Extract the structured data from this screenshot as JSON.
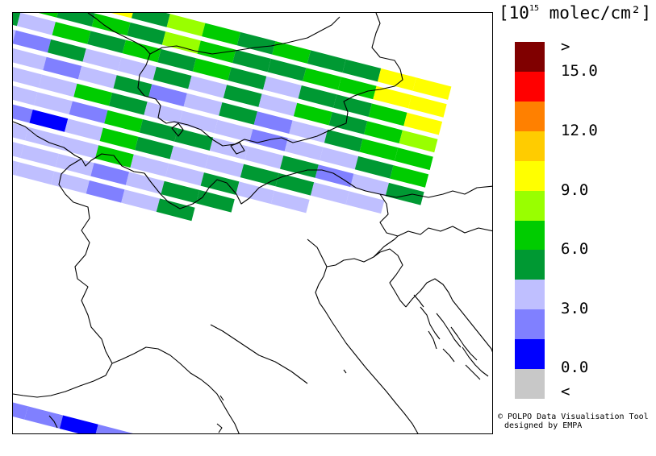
{
  "legend": {
    "unit_open": "[",
    "unit_base": "10",
    "unit_exp": "15",
    "unit_rest": " molec/cm²",
    "unit_close": "]",
    "colors": [
      "#c8c8c8",
      "#0000ff",
      "#8080ff",
      "#bfbfff",
      "#009933",
      "#00cc00",
      "#99ff00",
      "#ffff00",
      "#ffcc00",
      "#ff8000",
      "#ff0000",
      "#800000"
    ],
    "labels": [
      "<",
      "0.0",
      "3.0",
      "6.0",
      "9.0",
      "12.0",
      "15.0",
      ">"
    ]
  },
  "credit": {
    "line1": "© POLPO Data Visualisation Tool",
    "line2": "designed by EMPA"
  },
  "map": {
    "swath_cell_colors": [
      [
        "#009933",
        "#00cc00",
        "#009933",
        "#ffff00",
        "#009933",
        "#99ff00",
        "#00cc00",
        "#009933",
        "#00cc00",
        "#009933",
        "#009933",
        "#ffff00",
        "#ffff00"
      ],
      [
        "#009933",
        "#00cc00",
        "#009933",
        "#00cc00",
        "#009933",
        "#99ff00",
        "#00cc00",
        "#009933",
        "#009933",
        "#00cc00",
        "#00cc00",
        "#ffff00",
        "#ffff00"
      ],
      [
        "#009933",
        "#bfbfff",
        "#00cc00",
        "#009933",
        "#00cc00",
        "#009933",
        "#00cc00",
        "#009933",
        "#bfbfff",
        "#009933",
        "#009933",
        "#00cc00",
        "#ffff00"
      ],
      [
        "#bfbfff",
        "#8080ff",
        "#009933",
        "#bfbfff",
        "#bfbfff",
        "#009933",
        "#bfbfff",
        "#009933",
        "#bfbfff",
        "#00cc00",
        "#009933",
        "#00cc00",
        "#99ff00"
      ],
      [
        "#009933",
        "#bfbfff",
        "#8080ff",
        "#bfbfff",
        "#009933",
        "#8080ff",
        "#bfbfff",
        "#009933",
        "#8080ff",
        "#bfbfff",
        "#009933",
        "#00cc00",
        "#00cc00"
      ],
      [
        "#8080ff",
        "#bfbfff",
        "#bfbfff",
        "#00cc00",
        "#009933",
        "#bfbfff",
        "#bfbfff",
        "#bfbfff",
        "#8080ff",
        "#bfbfff",
        "#bfbfff",
        "#009933",
        "#00cc00"
      ],
      [
        "#8080ff",
        "#bfbfff",
        "#bfbfff",
        "#8080ff",
        "#00cc00",
        "#009933",
        "#009933",
        "#bfbfff",
        "#bfbfff",
        "#009933",
        "#8080ff",
        "#bfbfff",
        "#009933"
      ],
      [
        "#8080ff",
        "#8080ff",
        "#0000ff",
        "#bfbfff",
        "#00cc00",
        "#009933",
        "#bfbfff",
        "#bfbfff",
        "#009933",
        "#009933",
        "#bfbfff",
        "#bfbfff"
      ],
      [
        "#bfbfff",
        "#bfbfff",
        "#bfbfff",
        "#bfbfff",
        "#00cc00",
        "#bfbfff",
        "#bfbfff",
        "#009933",
        "#bfbfff",
        "#bfbfff"
      ],
      [
        "#bfbfff",
        "#bfbfff",
        "#bfbfff",
        "#bfbfff",
        "#8080ff",
        "#bfbfff",
        "#009933",
        "#009933"
      ],
      [
        "#bfbfff",
        "#bfbfff",
        "#bfbfff",
        "#bfbfff",
        "#8080ff",
        "#bfbfff",
        "#009933"
      ]
    ],
    "bottom_swath_colors": [
      "#8080ff",
      "#8080ff",
      "#0000ff",
      "#8080ff",
      "#8080ff"
    ]
  }
}
